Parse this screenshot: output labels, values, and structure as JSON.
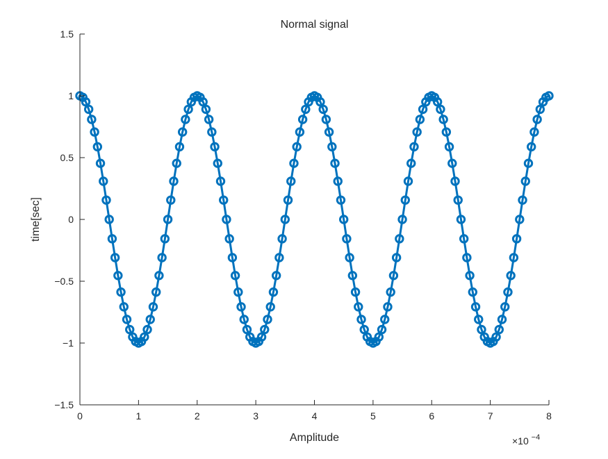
{
  "chart_data": {
    "type": "line",
    "title": "Normal signal",
    "xlabel": "Amplitude",
    "ylabel": "time[sec]",
    "x_exponent_label": "×10",
    "x_exponent_power": "−4",
    "x_scale": 0.0001,
    "xlim": [
      0,
      8
    ],
    "ylim": [
      -1.5,
      1.5
    ],
    "x_ticks": [
      0,
      1,
      2,
      3,
      4,
      5,
      6,
      7,
      8
    ],
    "x_tick_labels": [
      "0",
      "1",
      "2",
      "3",
      "4",
      "5",
      "6",
      "7",
      "8"
    ],
    "y_ticks": [
      -1.5,
      -1,
      -0.5,
      0,
      0.5,
      1,
      1.5
    ],
    "y_tick_labels": [
      "−1.5",
      "−1",
      "−0.5",
      "0",
      "0.5",
      "1",
      "1.5"
    ],
    "grid": false,
    "box": false,
    "series": [
      {
        "function": "cos(2*pi*5000*t)",
        "x_start": 0,
        "x_end": 8,
        "sample_step": 0.05,
        "marker": "circle",
        "line_style": "solid",
        "color": "#0072BD"
      }
    ]
  }
}
